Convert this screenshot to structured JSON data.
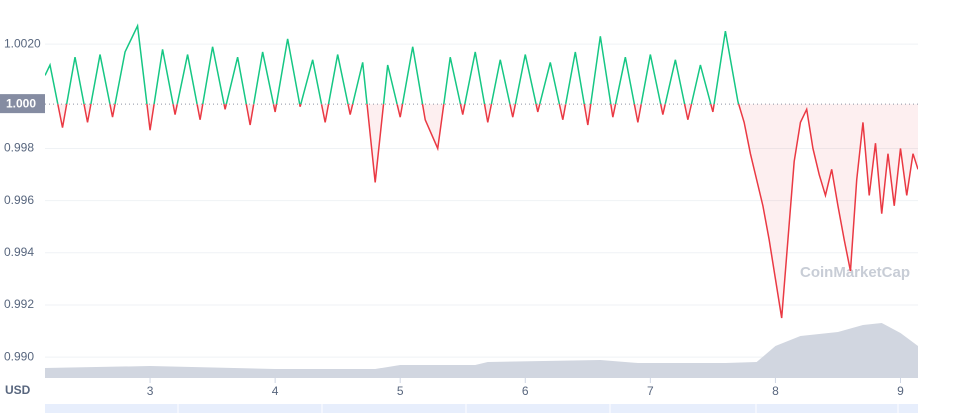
{
  "chart_data": {
    "type": "line",
    "x": [
      2.16,
      2.2,
      2.3,
      2.4,
      2.5,
      2.6,
      2.7,
      2.8,
      2.9,
      3.0,
      3.1,
      3.2,
      3.3,
      3.4,
      3.5,
      3.6,
      3.7,
      3.8,
      3.9,
      4.0,
      4.1,
      4.2,
      4.3,
      4.4,
      4.5,
      4.6,
      4.7,
      4.8,
      4.9,
      5.0,
      5.1,
      5.2,
      5.3,
      5.4,
      5.5,
      5.6,
      5.7,
      5.8,
      5.9,
      6.0,
      6.1,
      6.2,
      6.3,
      6.4,
      6.5,
      6.6,
      6.7,
      6.8,
      6.9,
      7.0,
      7.1,
      7.2,
      7.3,
      7.4,
      7.5,
      7.6,
      7.7,
      7.75,
      7.8,
      7.85,
      7.9,
      7.95,
      8.0,
      8.05,
      8.1,
      8.15,
      8.2,
      8.25,
      8.3,
      8.35,
      8.4,
      8.45,
      8.5,
      8.55,
      8.6,
      8.65,
      8.7,
      8.75,
      8.8,
      8.85,
      8.9,
      8.95,
      9.0,
      9.05,
      9.1,
      9.14
    ],
    "series": [
      {
        "color_up": "#16c784",
        "color_down": "#ea3943",
        "values": [
          1.0008,
          1.0012,
          0.9988,
          1.0015,
          0.999,
          1.0016,
          0.9992,
          1.0017,
          1.0027,
          0.9987,
          1.0018,
          0.9993,
          1.0016,
          0.9991,
          1.0019,
          0.9995,
          1.0015,
          0.9989,
          1.0017,
          0.9994,
          1.0022,
          0.9996,
          1.0014,
          0.999,
          1.0016,
          0.9993,
          1.0013,
          0.9967,
          1.0012,
          0.9992,
          1.0019,
          0.9991,
          0.998,
          1.0015,
          0.9993,
          1.0017,
          0.999,
          1.0014,
          0.9992,
          1.0016,
          0.9994,
          1.0013,
          0.9991,
          1.0017,
          0.9989,
          1.0023,
          0.9992,
          1.0015,
          0.999,
          1.0016,
          0.9993,
          1.0014,
          0.9991,
          1.0012,
          0.9994,
          1.0025,
          0.9998,
          0.999,
          0.9978,
          0.9968,
          0.9958,
          0.9945,
          0.993,
          0.9915,
          0.9945,
          0.9975,
          0.999,
          0.9995,
          0.998,
          0.997,
          0.9962,
          0.9972,
          0.9958,
          0.9945,
          0.9933,
          0.9968,
          0.999,
          0.9962,
          0.9982,
          0.9955,
          0.9978,
          0.9958,
          0.998,
          0.9962,
          0.9978,
          0.9972
        ]
      }
    ],
    "baseline": {
      "value": 0.9997,
      "label": "1.000"
    },
    "volume": {
      "color": "#d1d6e0",
      "x": [
        2.16,
        3.0,
        4.0,
        4.8,
        5.0,
        5.6,
        5.7,
        6.6,
        6.9,
        7.6,
        7.85,
        8.0,
        8.2,
        8.5,
        8.7,
        8.85,
        9.0,
        9.14
      ],
      "values": [
        10,
        12,
        9,
        9,
        13,
        13,
        16,
        18,
        15,
        15,
        16,
        32,
        42,
        46,
        53,
        55,
        45,
        32
      ]
    },
    "xlim": [
      2.16,
      9.14
    ],
    "xticks": [
      3,
      4,
      5,
      6,
      7,
      8,
      9
    ],
    "ylim": [
      0.9892,
      1.0035
    ],
    "yticks": [
      {
        "value": 0.99,
        "label": "0.990"
      },
      0.992,
      0.994,
      0.996,
      0.998,
      {
        "value": 1.002,
        "label": "1.0020"
      }
    ],
    "x_axis_label": "USD",
    "watermark": "CoinMarketCap",
    "grid": true
  }
}
